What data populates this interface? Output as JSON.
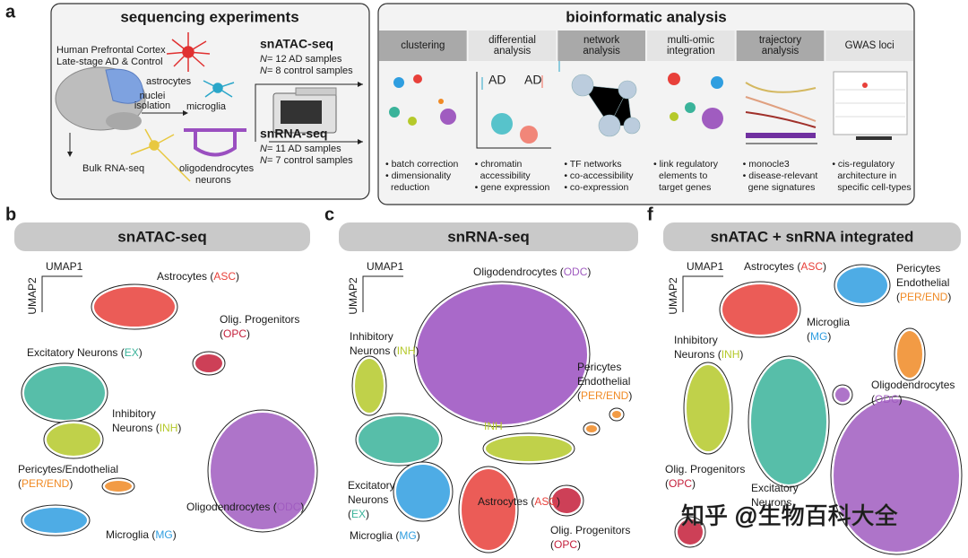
{
  "panel_a": {
    "label": "a",
    "experiments": {
      "title": "sequencing experiments",
      "tissue": [
        "Human Prefrontal Cortex",
        "Late-stage AD & Control"
      ],
      "cells": {
        "astrocytes": "astrocytes",
        "microglia": "microglia",
        "oligodendrocytes": "oligodendrocytes",
        "neurons": "neurons"
      },
      "isolation": [
        "nuclei",
        "isolation"
      ],
      "bulk": "Bulk RNA-seq",
      "assays": [
        {
          "name": "snATAC-seq",
          "samples": [
            [
              "N",
              "= 12 AD samples"
            ],
            [
              "N",
              "= 8 control samples"
            ]
          ]
        },
        {
          "name": "snRNA-seq",
          "samples": [
            [
              "N",
              "= 11 AD samples"
            ],
            [
              "N",
              "= 7 control samples"
            ]
          ]
        }
      ]
    },
    "analysis": {
      "title": "bioinformatic analysis",
      "markers": [
        {
          "t": "AD",
          "color": "#2aa6c9"
        },
        {
          "t": "AD",
          "color": "#f06a5a"
        }
      ],
      "columns": [
        {
          "header": [
            "clustering"
          ],
          "bullets": [
            [
              "• batch correction"
            ],
            [
              "• dimensionality",
              "reduction"
            ]
          ]
        },
        {
          "header": [
            "differential",
            "analysis"
          ],
          "bullets": [
            [
              "• chromatin",
              "accessibility"
            ],
            [
              "• gene expression"
            ]
          ]
        },
        {
          "header": [
            "network",
            "analysis"
          ],
          "bullets": [
            [
              "• TF networks"
            ],
            [
              "• co-accessibility"
            ],
            [
              "• co-expression"
            ]
          ]
        },
        {
          "header": [
            "multi-omic",
            "integration"
          ],
          "bullets": [
            [
              "• link regulatory",
              "elements to",
              "target genes"
            ]
          ]
        },
        {
          "header": [
            "trajectory",
            "analysis"
          ],
          "bullets": [
            [
              "• monocle3"
            ],
            [
              "• disease-relevant",
              "gene signatures"
            ]
          ]
        },
        {
          "header": [
            "GWAS loci"
          ],
          "bullets": [
            [
              "• cis-regulatory",
              "architecture in",
              "specific cell-types"
            ]
          ]
        }
      ]
    }
  },
  "umap_panels": [
    {
      "label": "b",
      "title": "snATAC-seq",
      "axes": [
        "UMAP1",
        "UMAP2"
      ],
      "clusters": [
        {
          "lines": [
            [
              "Astrocytes (",
              {
                "t": "ASC",
                "color": "#e8403a"
              },
              ")"
            ]
          ]
        },
        {
          "lines": [
            [
              "Olig. Progenitors"
            ],
            [
              "(",
              {
                "t": "OPC",
                "color": "#c41e3a"
              },
              ")"
            ]
          ]
        },
        {
          "lines": [
            [
              "Excitatory Neurons (",
              {
                "t": "EX",
                "color": "#3ab39a"
              },
              ")"
            ]
          ]
        },
        {
          "lines": [
            [
              "Inhibitory"
            ],
            [
              "Neurons (",
              {
                "t": "INH",
                "color": "#b5c92a"
              },
              ")"
            ]
          ]
        },
        {
          "lines": [
            [
              "Pericytes/Endothelial"
            ],
            [
              "(",
              {
                "t": "PER/END",
                "color": "#f08a24"
              },
              ")"
            ]
          ]
        },
        {
          "lines": [
            [
              "Microglia (",
              {
                "t": "MG",
                "color": "#2f9ee0"
              },
              ")"
            ]
          ]
        },
        {
          "lines": [
            [
              "Oligodendrocytes (",
              {
                "t": "ODC",
                "color": "#a05cc0"
              },
              ")"
            ]
          ]
        }
      ]
    },
    {
      "label": "c",
      "title": "snRNA-seq",
      "axes": [
        "UMAP1",
        "UMAP2"
      ],
      "clusters": [
        {
          "lines": [
            [
              "Oligodendrocytes (",
              {
                "t": "ODC",
                "color": "#a05cc0"
              },
              ")"
            ]
          ]
        },
        {
          "lines": [
            [
              "Inhibitory"
            ],
            [
              "Neurons (",
              {
                "t": "INH",
                "color": "#b5c92a"
              },
              ")"
            ]
          ]
        },
        {
          "lines": [
            [
              "Pericytes"
            ],
            [
              "Endothelial"
            ],
            [
              "(",
              {
                "t": "PER/END",
                "color": "#f08a24"
              },
              ")"
            ]
          ]
        },
        {
          "lines": [
            [
              {
                "t": "INH",
                "color": "#b5c92a"
              }
            ]
          ]
        },
        {
          "lines": [
            [
              "Excitatory"
            ],
            [
              "Neurons"
            ],
            [
              "(",
              {
                "t": "EX",
                "color": "#3ab39a"
              },
              ")"
            ]
          ]
        },
        {
          "lines": [
            [
              "Astrocytes (",
              {
                "t": "ASC",
                "color": "#e8403a"
              },
              ")"
            ]
          ]
        },
        {
          "lines": [
            [
              "Microglia (",
              {
                "t": "MG",
                "color": "#2f9ee0"
              },
              ")"
            ]
          ]
        },
        {
          "lines": [
            [
              "Olig. Progenitors"
            ],
            [
              "(",
              {
                "t": "OPC",
                "color": "#c41e3a"
              },
              ")"
            ]
          ]
        }
      ]
    },
    {
      "label": "f",
      "title": "snATAC + snRNA integrated",
      "axes": [
        "UMAP1",
        "UMAP2"
      ],
      "clusters": [
        {
          "lines": [
            [
              "Astrocytes (",
              {
                "t": "ASC",
                "color": "#e8403a"
              },
              ")"
            ]
          ]
        },
        {
          "lines": [
            [
              "Pericytes"
            ],
            [
              "Endothelial"
            ],
            [
              "(",
              {
                "t": "PER/END",
                "color": "#f08a24"
              },
              ")"
            ]
          ]
        },
        {
          "lines": [
            [
              "Microglia"
            ],
            [
              "(",
              {
                "t": "MG",
                "color": "#2f9ee0"
              },
              ")"
            ]
          ]
        },
        {
          "lines": [
            [
              "Inhibitory"
            ],
            [
              "Neurons (",
              {
                "t": "INH",
                "color": "#b5c92a"
              },
              ")"
            ]
          ]
        },
        {
          "lines": [
            [
              "Oligodendrocytes"
            ],
            [
              "(",
              {
                "t": "ODC",
                "color": "#a05cc0"
              },
              ")"
            ]
          ]
        },
        {
          "lines": [
            [
              "Olig. Progenitors"
            ],
            [
              "(",
              {
                "t": "OPC",
                "color": "#c41e3a"
              },
              ")"
            ]
          ]
        },
        {
          "lines": [
            [
              "Excitatory"
            ],
            [
              "Neurons"
            ]
          ]
        }
      ]
    }
  ],
  "watermark": "知乎 @生物百科大全"
}
